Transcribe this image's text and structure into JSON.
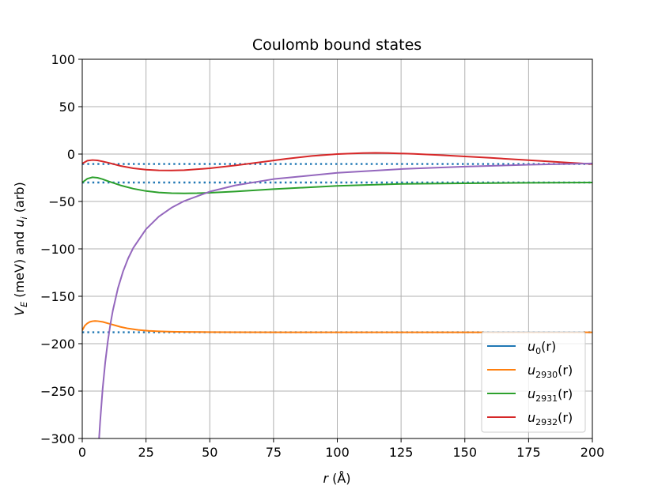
{
  "chart_data": {
    "type": "line",
    "title": "Coulomb bound states",
    "xlabel": "r (Å)",
    "ylabel": "V_E (meV) and u_i (arb)",
    "xlim": [
      0,
      200
    ],
    "ylim": [
      -300,
      100
    ],
    "xticks": [
      0,
      25,
      50,
      75,
      100,
      125,
      150,
      175,
      200
    ],
    "yticks": [
      100,
      50,
      0,
      -50,
      -100,
      -150,
      -200,
      -250,
      -300
    ],
    "xtick_labels": [
      "0",
      "25",
      "50",
      "75",
      "100",
      "125",
      "150",
      "175",
      "200"
    ],
    "ytick_labels": [
      "100",
      "50",
      "0",
      "−50",
      "−100",
      "−150",
      "−200",
      "−250",
      "−300"
    ],
    "grid": true,
    "legend_position": "lower-right",
    "series": [
      {
        "name": "u_0(r)",
        "color": "#1f77b4",
        "style": "solid",
        "x": [],
        "y": []
      },
      {
        "name": "u_2930(r)",
        "color": "#ff7f0e",
        "style": "solid",
        "x": [
          0,
          1,
          2,
          3,
          4,
          5,
          6,
          8,
          10,
          12,
          15,
          18,
          22,
          26,
          30,
          35,
          40,
          50,
          60,
          80,
          100,
          150,
          200
        ],
        "y": [
          -186,
          -181,
          -178.5,
          -177,
          -176.3,
          -176,
          -176.2,
          -177,
          -178.5,
          -180,
          -182.3,
          -184,
          -185.5,
          -186.5,
          -187,
          -187.4,
          -187.6,
          -187.8,
          -187.9,
          -188,
          -188,
          -188,
          -188
        ]
      },
      {
        "name": "u_2931(r)",
        "color": "#2ca02c",
        "style": "solid",
        "x": [
          0,
          2,
          4,
          6,
          8,
          10,
          15,
          20,
          25,
          30,
          35,
          40,
          45,
          50,
          60,
          75,
          100,
          125,
          150,
          175,
          200
        ],
        "y": [
          -30,
          -26,
          -24.5,
          -25,
          -26.5,
          -28.5,
          -33,
          -36.5,
          -39,
          -40.5,
          -41.2,
          -41.5,
          -41.3,
          -40.8,
          -39.5,
          -37,
          -33.5,
          -31.5,
          -30.8,
          -30.3,
          -30
        ]
      },
      {
        "name": "u_2932(r)",
        "color": "#d62728",
        "style": "solid",
        "x": [
          0,
          2,
          4,
          6,
          8,
          10,
          15,
          20,
          25,
          30,
          35,
          40,
          50,
          60,
          70,
          80,
          90,
          100,
          110,
          115,
          120,
          130,
          140,
          150,
          160,
          175,
          190,
          200
        ],
        "y": [
          -10,
          -7,
          -6.3,
          -6.7,
          -7.8,
          -9,
          -12.5,
          -15,
          -16.5,
          -17.2,
          -17.3,
          -17,
          -15,
          -12,
          -8.5,
          -5,
          -2,
          0,
          1,
          1.2,
          1,
          0.2,
          -1,
          -2.5,
          -4,
          -6.5,
          -9,
          -10.5
        ]
      },
      {
        "name": "",
        "color": "#9467bd",
        "style": "solid",
        "x": [
          6.6,
          7,
          8,
          9,
          10,
          11,
          12,
          14,
          16,
          18,
          20,
          25,
          30,
          35,
          40,
          50,
          60,
          75,
          100,
          125,
          150,
          175,
          200
        ],
        "y": [
          -300,
          -282.9,
          -247.5,
          -220,
          -198,
          -180,
          -165,
          -141.4,
          -123.8,
          -110,
          -99,
          -79.2,
          -66,
          -56.6,
          -49.5,
          -39.6,
          -33,
          -26.4,
          -19.8,
          -15.8,
          -13.2,
          -11.3,
          -9.9
        ]
      },
      {
        "name": "",
        "color": "#1f77b4",
        "style": "dotted",
        "x": [
          0,
          200
        ],
        "y": [
          -188,
          -188
        ]
      },
      {
        "name": "",
        "color": "#1f77b4",
        "style": "dotted",
        "x": [
          0,
          200
        ],
        "y": [
          -30,
          -30
        ]
      },
      {
        "name": "",
        "color": "#1f77b4",
        "style": "dotted",
        "x": [
          0,
          200
        ],
        "y": [
          -10.5,
          -10.5
        ]
      }
    ],
    "legend": [
      {
        "label_main": "u",
        "label_sub": "0",
        "label_tail": "(r)",
        "color": "#1f77b4"
      },
      {
        "label_main": "u",
        "label_sub": "2930",
        "label_tail": "(r)",
        "color": "#ff7f0e"
      },
      {
        "label_main": "u",
        "label_sub": "2931",
        "label_tail": "(r)",
        "color": "#2ca02c"
      },
      {
        "label_main": "u",
        "label_sub": "2932",
        "label_tail": "(r)",
        "color": "#d62728"
      }
    ]
  }
}
